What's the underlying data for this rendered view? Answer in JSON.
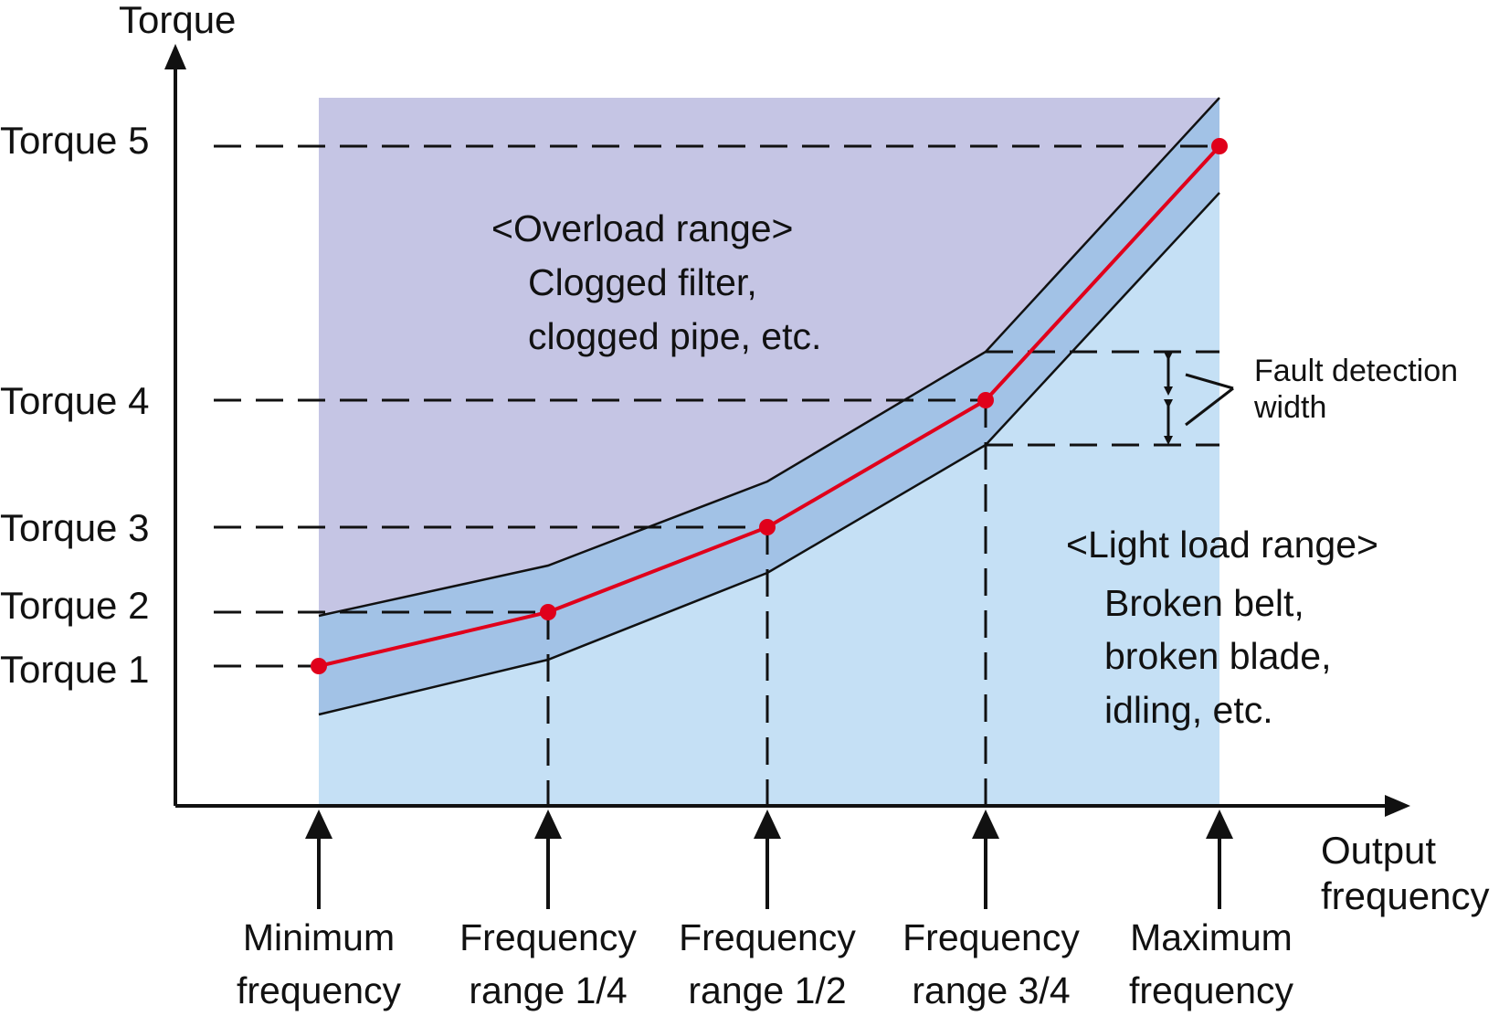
{
  "chart_data": {
    "type": "line",
    "title": "",
    "y_axis_title": "Torque",
    "x_axis_title_lines": [
      "Output",
      "frequency"
    ],
    "y_ticks": [
      "Torque 1",
      "Torque 2",
      "Torque 3",
      "Torque 4",
      "Torque 5"
    ],
    "x_ticks": [
      [
        "Minimum",
        "frequency"
      ],
      [
        "Frequency",
        "range 1/4"
      ],
      [
        "Frequency",
        "range 1/2"
      ],
      [
        "Frequency",
        "range 3/4"
      ],
      [
        "Maximum",
        "frequency"
      ]
    ],
    "series": [
      {
        "x": [
          "Minimum frequency",
          "Frequency range 1/4",
          "Frequency range 1/2",
          "Frequency range 3/4",
          "Maximum frequency"
        ],
        "y": [
          "Torque 1",
          "Torque 2",
          "Torque 3",
          "Torque 4",
          "Torque 5"
        ],
        "color": "#e0001b"
      }
    ],
    "regions": {
      "overload": {
        "title": "<Overload range>",
        "lines": [
          "Clogged filter,",
          "clogged pipe, etc."
        ],
        "color": "#c5c5e4"
      },
      "light_load": {
        "title": "<Light load range>",
        "lines": [
          "Broken belt,",
          "broken blade,",
          "idling, etc."
        ],
        "color": "#c5e0f5"
      },
      "band_color": "#a2c2e6"
    },
    "annotation": {
      "lines": [
        "Fault detection",
        "width"
      ]
    }
  }
}
